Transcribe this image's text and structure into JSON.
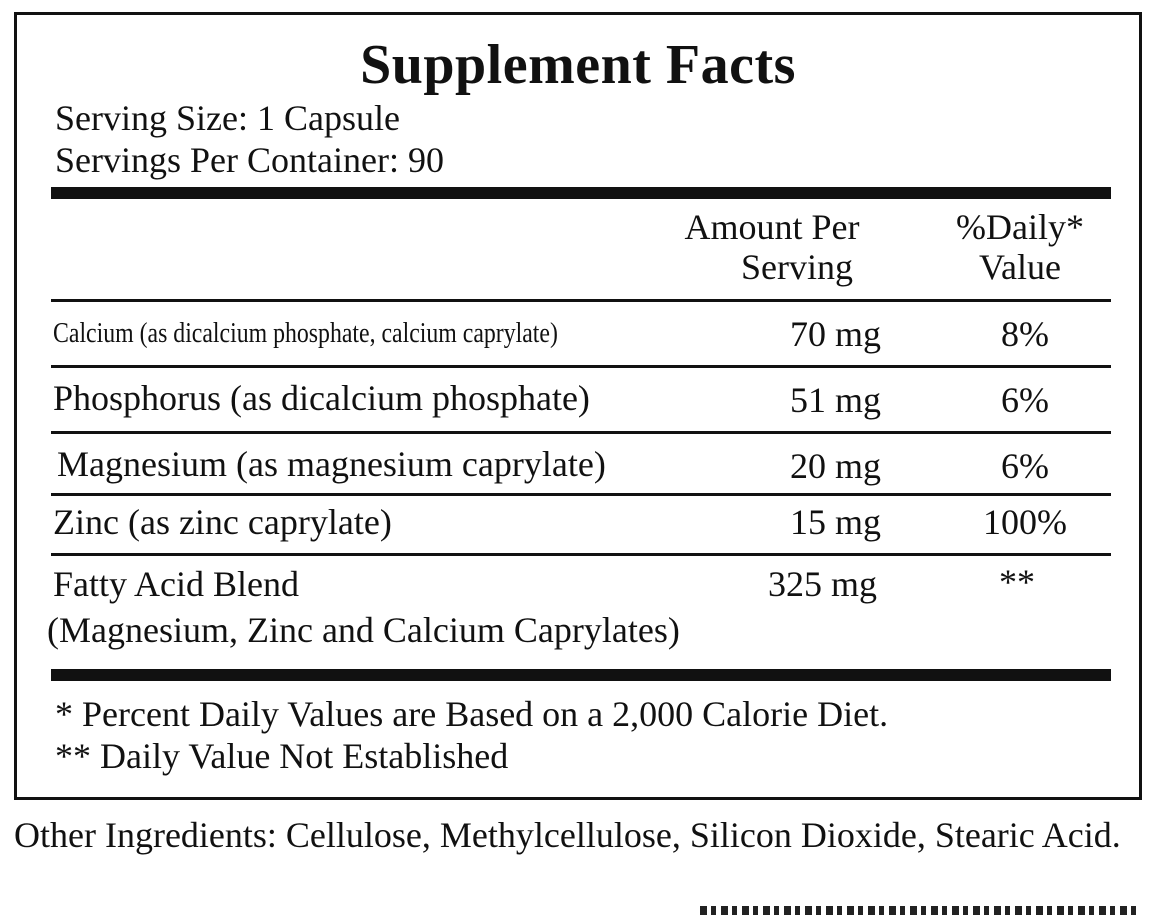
{
  "label": {
    "title": "Supplement Facts",
    "serving_size": "Serving Size: 1 Capsule",
    "servings_per_container": "Servings Per Container: 90",
    "header_amount_line1": "Amount Per",
    "header_amount_line2": "Serving",
    "header_dv_line1": "%Daily*",
    "header_dv_line2": "Value",
    "rows": [
      {
        "name": "Calcium (as dicalcium phosphate, calcium caprylate)",
        "amount": "70 mg",
        "dv": "8%"
      },
      {
        "name": "Phosphorus (as dicalcium phosphate)",
        "amount": "51 mg",
        "dv": "6%"
      },
      {
        "name": "Magnesium (as magnesium caprylate)",
        "amount": "20 mg",
        "dv": "6%"
      },
      {
        "name": "Zinc (as zinc caprylate)",
        "amount": "15 mg",
        "dv": "100%"
      },
      {
        "name": "Fatty Acid Blend",
        "name_line2": "(Magnesium, Zinc and Calcium Caprylates)",
        "amount": "325 mg",
        "dv": "**"
      }
    ],
    "footnote_1": "* Percent Daily Values are Based on a 2,000 Calorie Diet.",
    "footnote_2": "** Daily Value Not Established"
  },
  "other_ingredients": "Other Ingredients: Cellulose, Methylcellulose, Silicon Dioxide, Stearic Acid."
}
